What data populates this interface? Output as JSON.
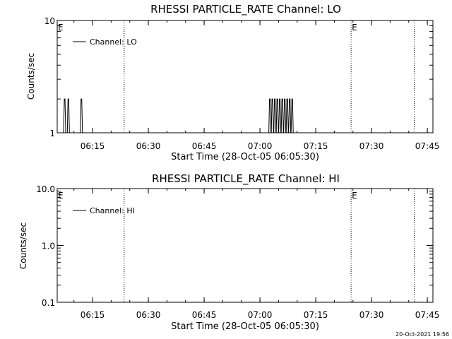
{
  "chart_data": [
    {
      "type": "line",
      "title": "RHESSI PARTICLE_RATE Channel: LO",
      "xlabel": "Start Time (28-Oct-05 06:05:30)",
      "ylabel": "Counts/sec",
      "x_tick_labels": [
        "06:15",
        "06:30",
        "06:45",
        "07:00",
        "07:15",
        "07:30",
        "07:45"
      ],
      "x_range": [
        "06:05:30",
        "07:46:30"
      ],
      "y_scale": "log",
      "ylim": [
        1,
        10
      ],
      "y_tick_labels": [
        "1",
        "10"
      ],
      "legend": "top-left",
      "grid": false,
      "series": [
        {
          "name": "Channel: LO",
          "color": "#000000",
          "spikes": [
            {
              "x": "06:07:30",
              "y": 2
            },
            {
              "x": "06:08:30",
              "y": 2
            },
            {
              "x": "06:12:00",
              "y": 2
            },
            {
              "x": "07:02:40",
              "y": 2
            },
            {
              "x": "07:03:20",
              "y": 2
            },
            {
              "x": "07:04:00",
              "y": 2
            },
            {
              "x": "07:04:40",
              "y": 2
            },
            {
              "x": "07:05:20",
              "y": 2
            },
            {
              "x": "07:06:00",
              "y": 2
            },
            {
              "x": "07:06:40",
              "y": 2
            },
            {
              "x": "07:07:20",
              "y": 2
            },
            {
              "x": "07:08:00",
              "y": 2
            },
            {
              "x": "07:08:40",
              "y": 2
            }
          ]
        }
      ],
      "markers": [
        {
          "time": "06:05:30",
          "label": "E"
        },
        {
          "time": "06:23:30",
          "label": ""
        },
        {
          "time": "07:24:30",
          "label": "E"
        },
        {
          "time": "07:41:30",
          "label": ""
        }
      ]
    },
    {
      "type": "line",
      "title": "RHESSI PARTICLE_RATE Channel: HI",
      "xlabel": "Start Time (28-Oct-05 06:05:30)",
      "ylabel": "Counts/sec",
      "x_tick_labels": [
        "06:15",
        "06:30",
        "06:45",
        "07:00",
        "07:15",
        "07:30",
        "07:45"
      ],
      "x_range": [
        "06:05:30",
        "07:46:30"
      ],
      "y_scale": "log",
      "ylim": [
        0.1,
        10
      ],
      "y_tick_labels": [
        "0.1",
        "1.0",
        "10.0"
      ],
      "legend": "top-left",
      "grid": false,
      "series": [
        {
          "name": "Channel: HI",
          "color": "#000000",
          "spikes": []
        }
      ],
      "markers": [
        {
          "time": "06:05:30",
          "label": "E"
        },
        {
          "time": "06:23:30",
          "label": ""
        },
        {
          "time": "07:24:30",
          "label": "E"
        },
        {
          "time": "07:41:30",
          "label": ""
        }
      ]
    }
  ],
  "footer": {
    "timestamp": "20-Oct-2021 19:56"
  }
}
